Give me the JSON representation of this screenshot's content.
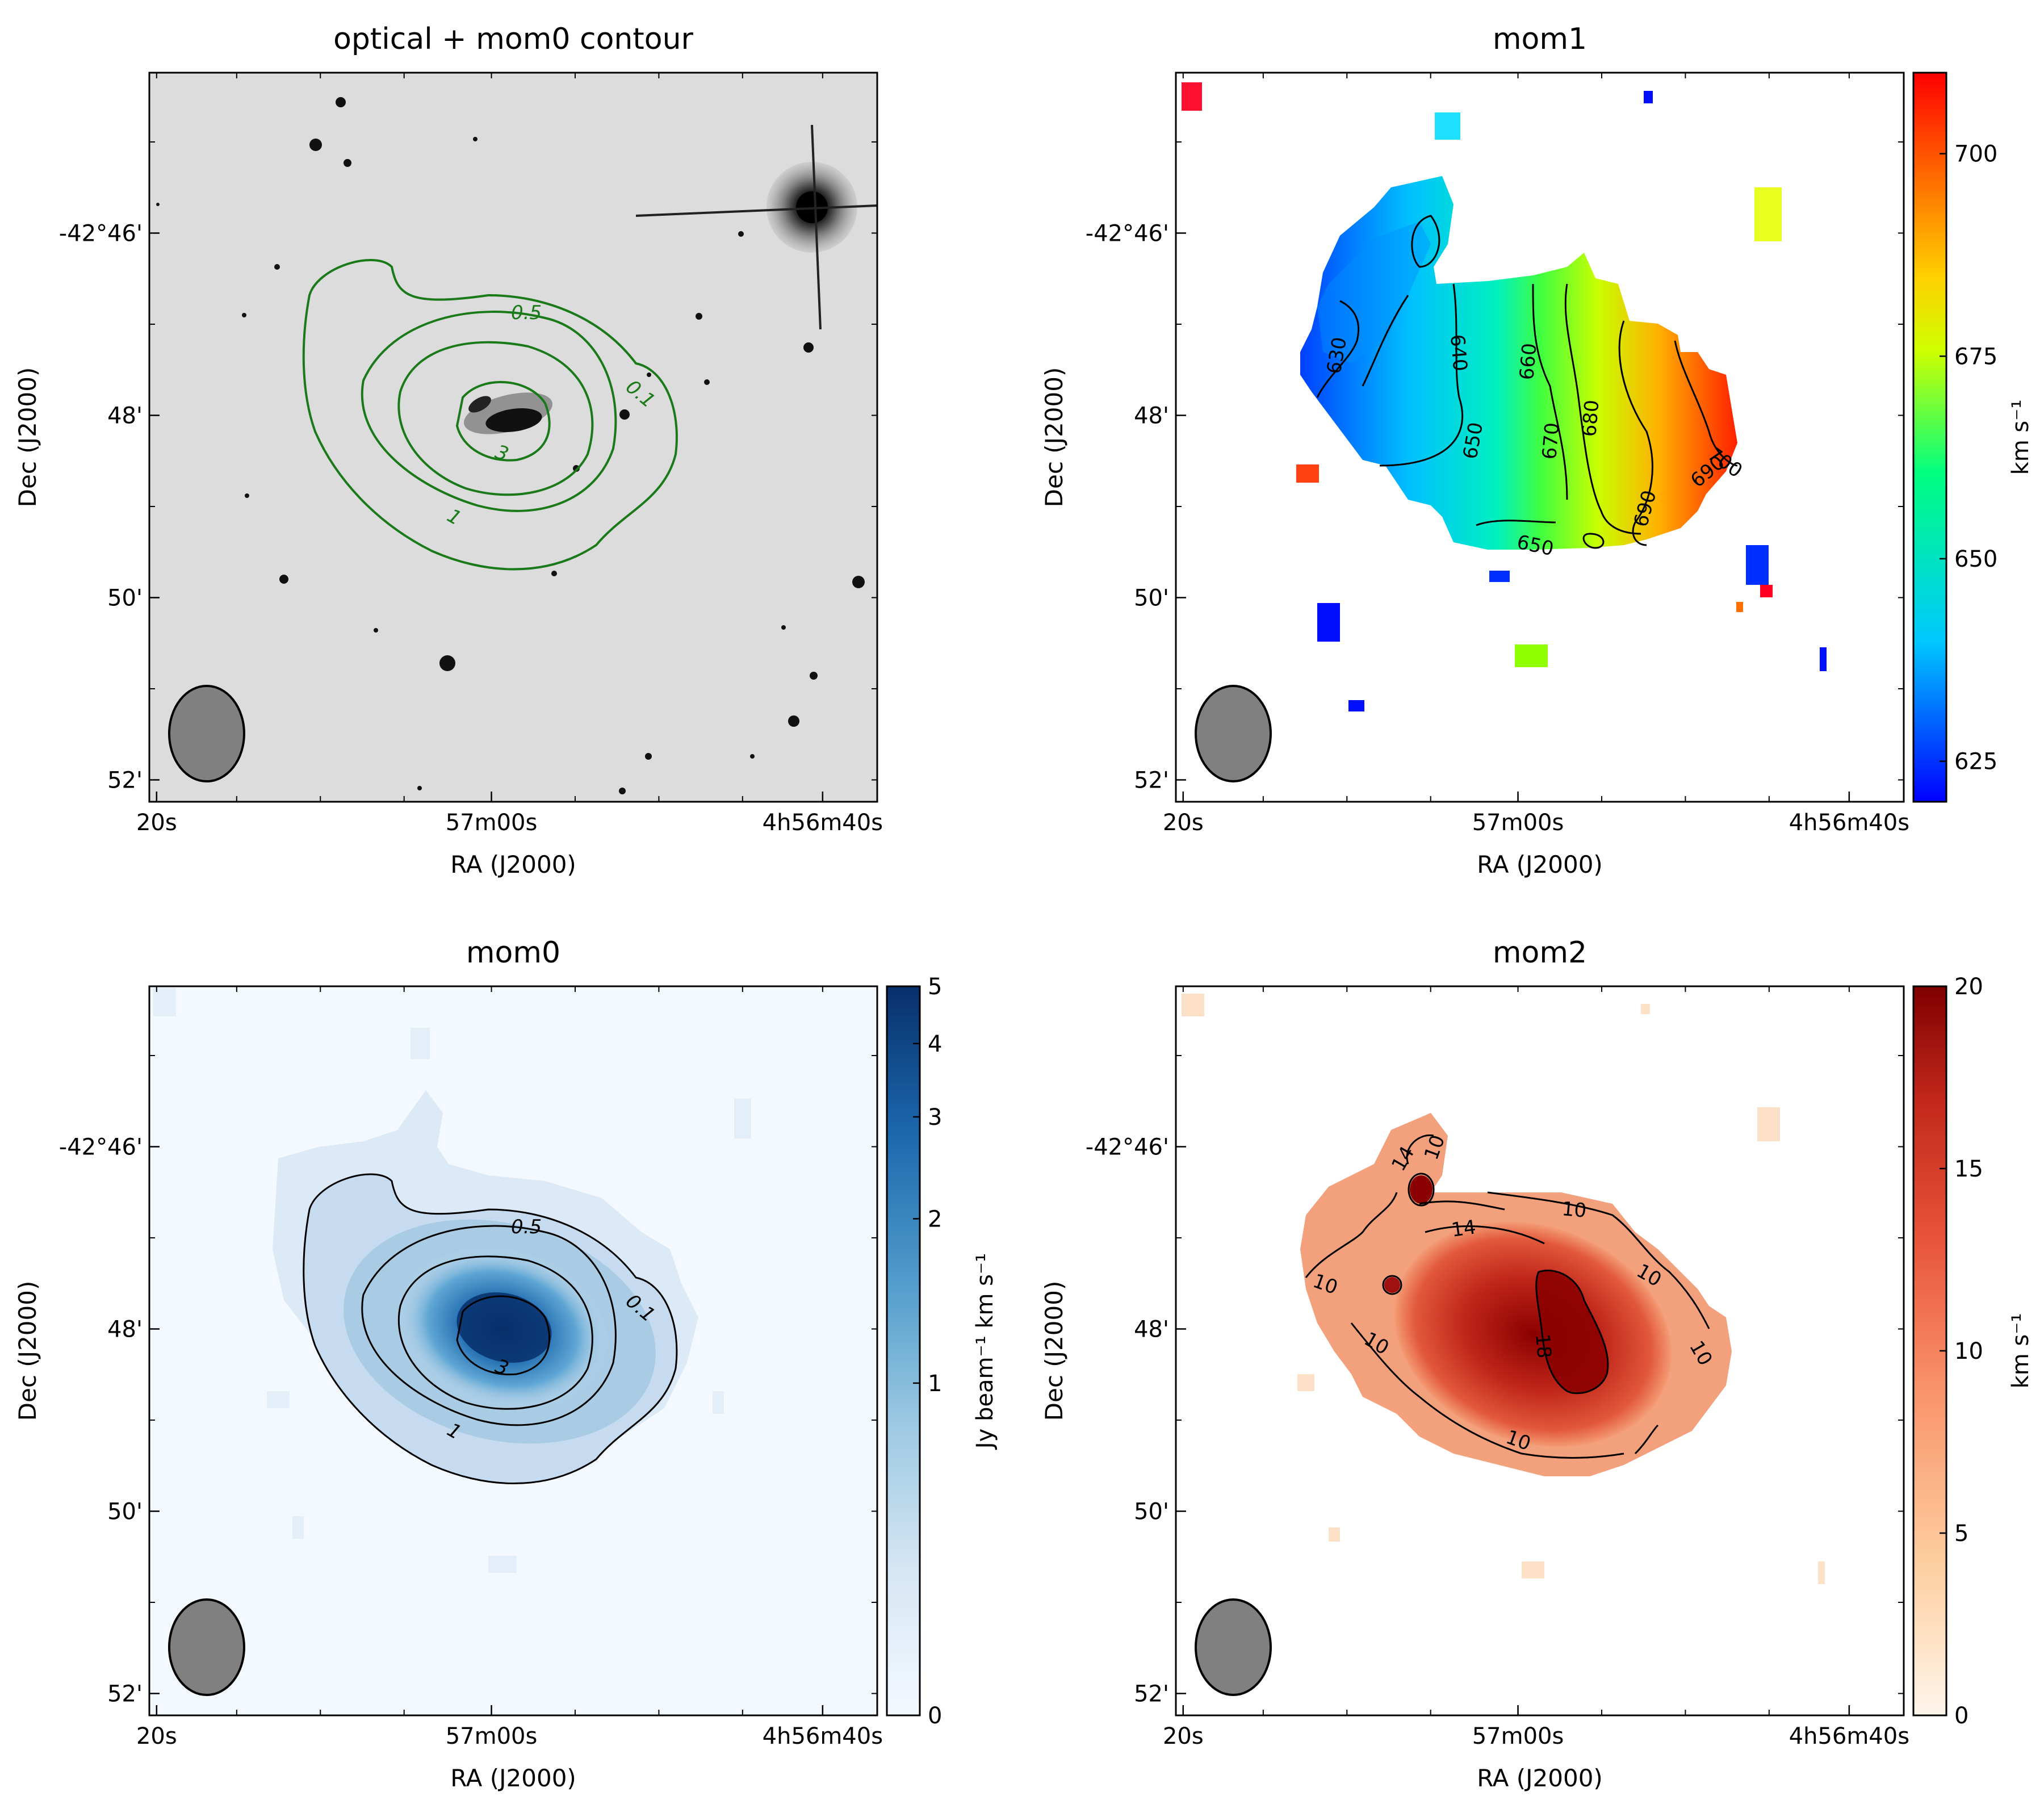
{
  "colors": {
    "frame": "#000000",
    "optical_bg": "#dcdcdc",
    "optical_contour": "#1a7a1a",
    "beam_fill": "#808080",
    "mom1_cmap": [
      "#0000ff",
      "#00c8ff",
      "#00ff80",
      "#d0ff00",
      "#ffd000",
      "#ff7000",
      "#ff0000"
    ],
    "mom0_cmap": [
      "#f4f9ff",
      "#d6e6f4",
      "#9cc9e2",
      "#4f9bcb",
      "#1b67ad",
      "#08306b"
    ],
    "mom2_cmap": [
      "#fff5eb",
      "#fdd0a2",
      "#f9926a",
      "#e8553a",
      "#c0261a",
      "#7f0000"
    ]
  },
  "chart_data": [
    {
      "type": "heatmap",
      "panel": "optical",
      "title": "optical + mom0 contour",
      "xlabel": "RA (J2000)",
      "ylabel": "Dec (J2000)",
      "xticks": [
        "20s",
        "57m00s",
        "4h56m40s"
      ],
      "yticks": [
        "-42°46'",
        "48'",
        "50'",
        "52'"
      ],
      "contour_levels": [
        "0.5",
        "0.1",
        "1",
        "3"
      ]
    },
    {
      "type": "heatmap",
      "panel": "mom1",
      "title": "mom1",
      "xlabel": "RA (J2000)",
      "ylabel": "Dec (J2000)",
      "xticks": [
        "20s",
        "57m00s",
        "4h56m40s"
      ],
      "yticks": [
        "-42°46'",
        "48'",
        "50'",
        "52'"
      ],
      "colorbar": {
        "label": "km s⁻¹",
        "ticks": [
          "625",
          "650",
          "675",
          "700"
        ],
        "range": [
          620,
          710
        ]
      },
      "contour_levels": [
        "630",
        "640",
        "650",
        "660",
        "670",
        "680",
        "690",
        "700",
        "650",
        "690"
      ]
    },
    {
      "type": "heatmap",
      "panel": "mom0",
      "title": "mom0",
      "xlabel": "RA (J2000)",
      "ylabel": "Dec (J2000)",
      "xticks": [
        "20s",
        "57m00s",
        "4h56m40s"
      ],
      "yticks": [
        "-42°46'",
        "48'",
        "50'",
        "52'"
      ],
      "colorbar": {
        "label": "Jy beam⁻¹ km s⁻¹",
        "ticks": [
          "5",
          "4",
          "3",
          "2",
          "1",
          "0"
        ],
        "range": [
          0,
          5
        ]
      },
      "contour_levels": [
        "0.5",
        "0.1",
        "1",
        "3"
      ]
    },
    {
      "type": "heatmap",
      "panel": "mom2",
      "title": "mom2",
      "xlabel": "RA (J2000)",
      "ylabel": "Dec (J2000)",
      "xticks": [
        "20s",
        "57m00s",
        "4h56m40s"
      ],
      "yticks": [
        "-42°46'",
        "48'",
        "50'",
        "52'"
      ],
      "colorbar": {
        "label": "km s⁻¹",
        "ticks": [
          "20",
          "15",
          "10",
          "5",
          "0"
        ],
        "range": [
          0,
          20
        ]
      },
      "contour_levels": [
        "10",
        "14",
        "10",
        "14",
        "10",
        "10",
        "18",
        "10",
        "10",
        "10"
      ]
    }
  ]
}
